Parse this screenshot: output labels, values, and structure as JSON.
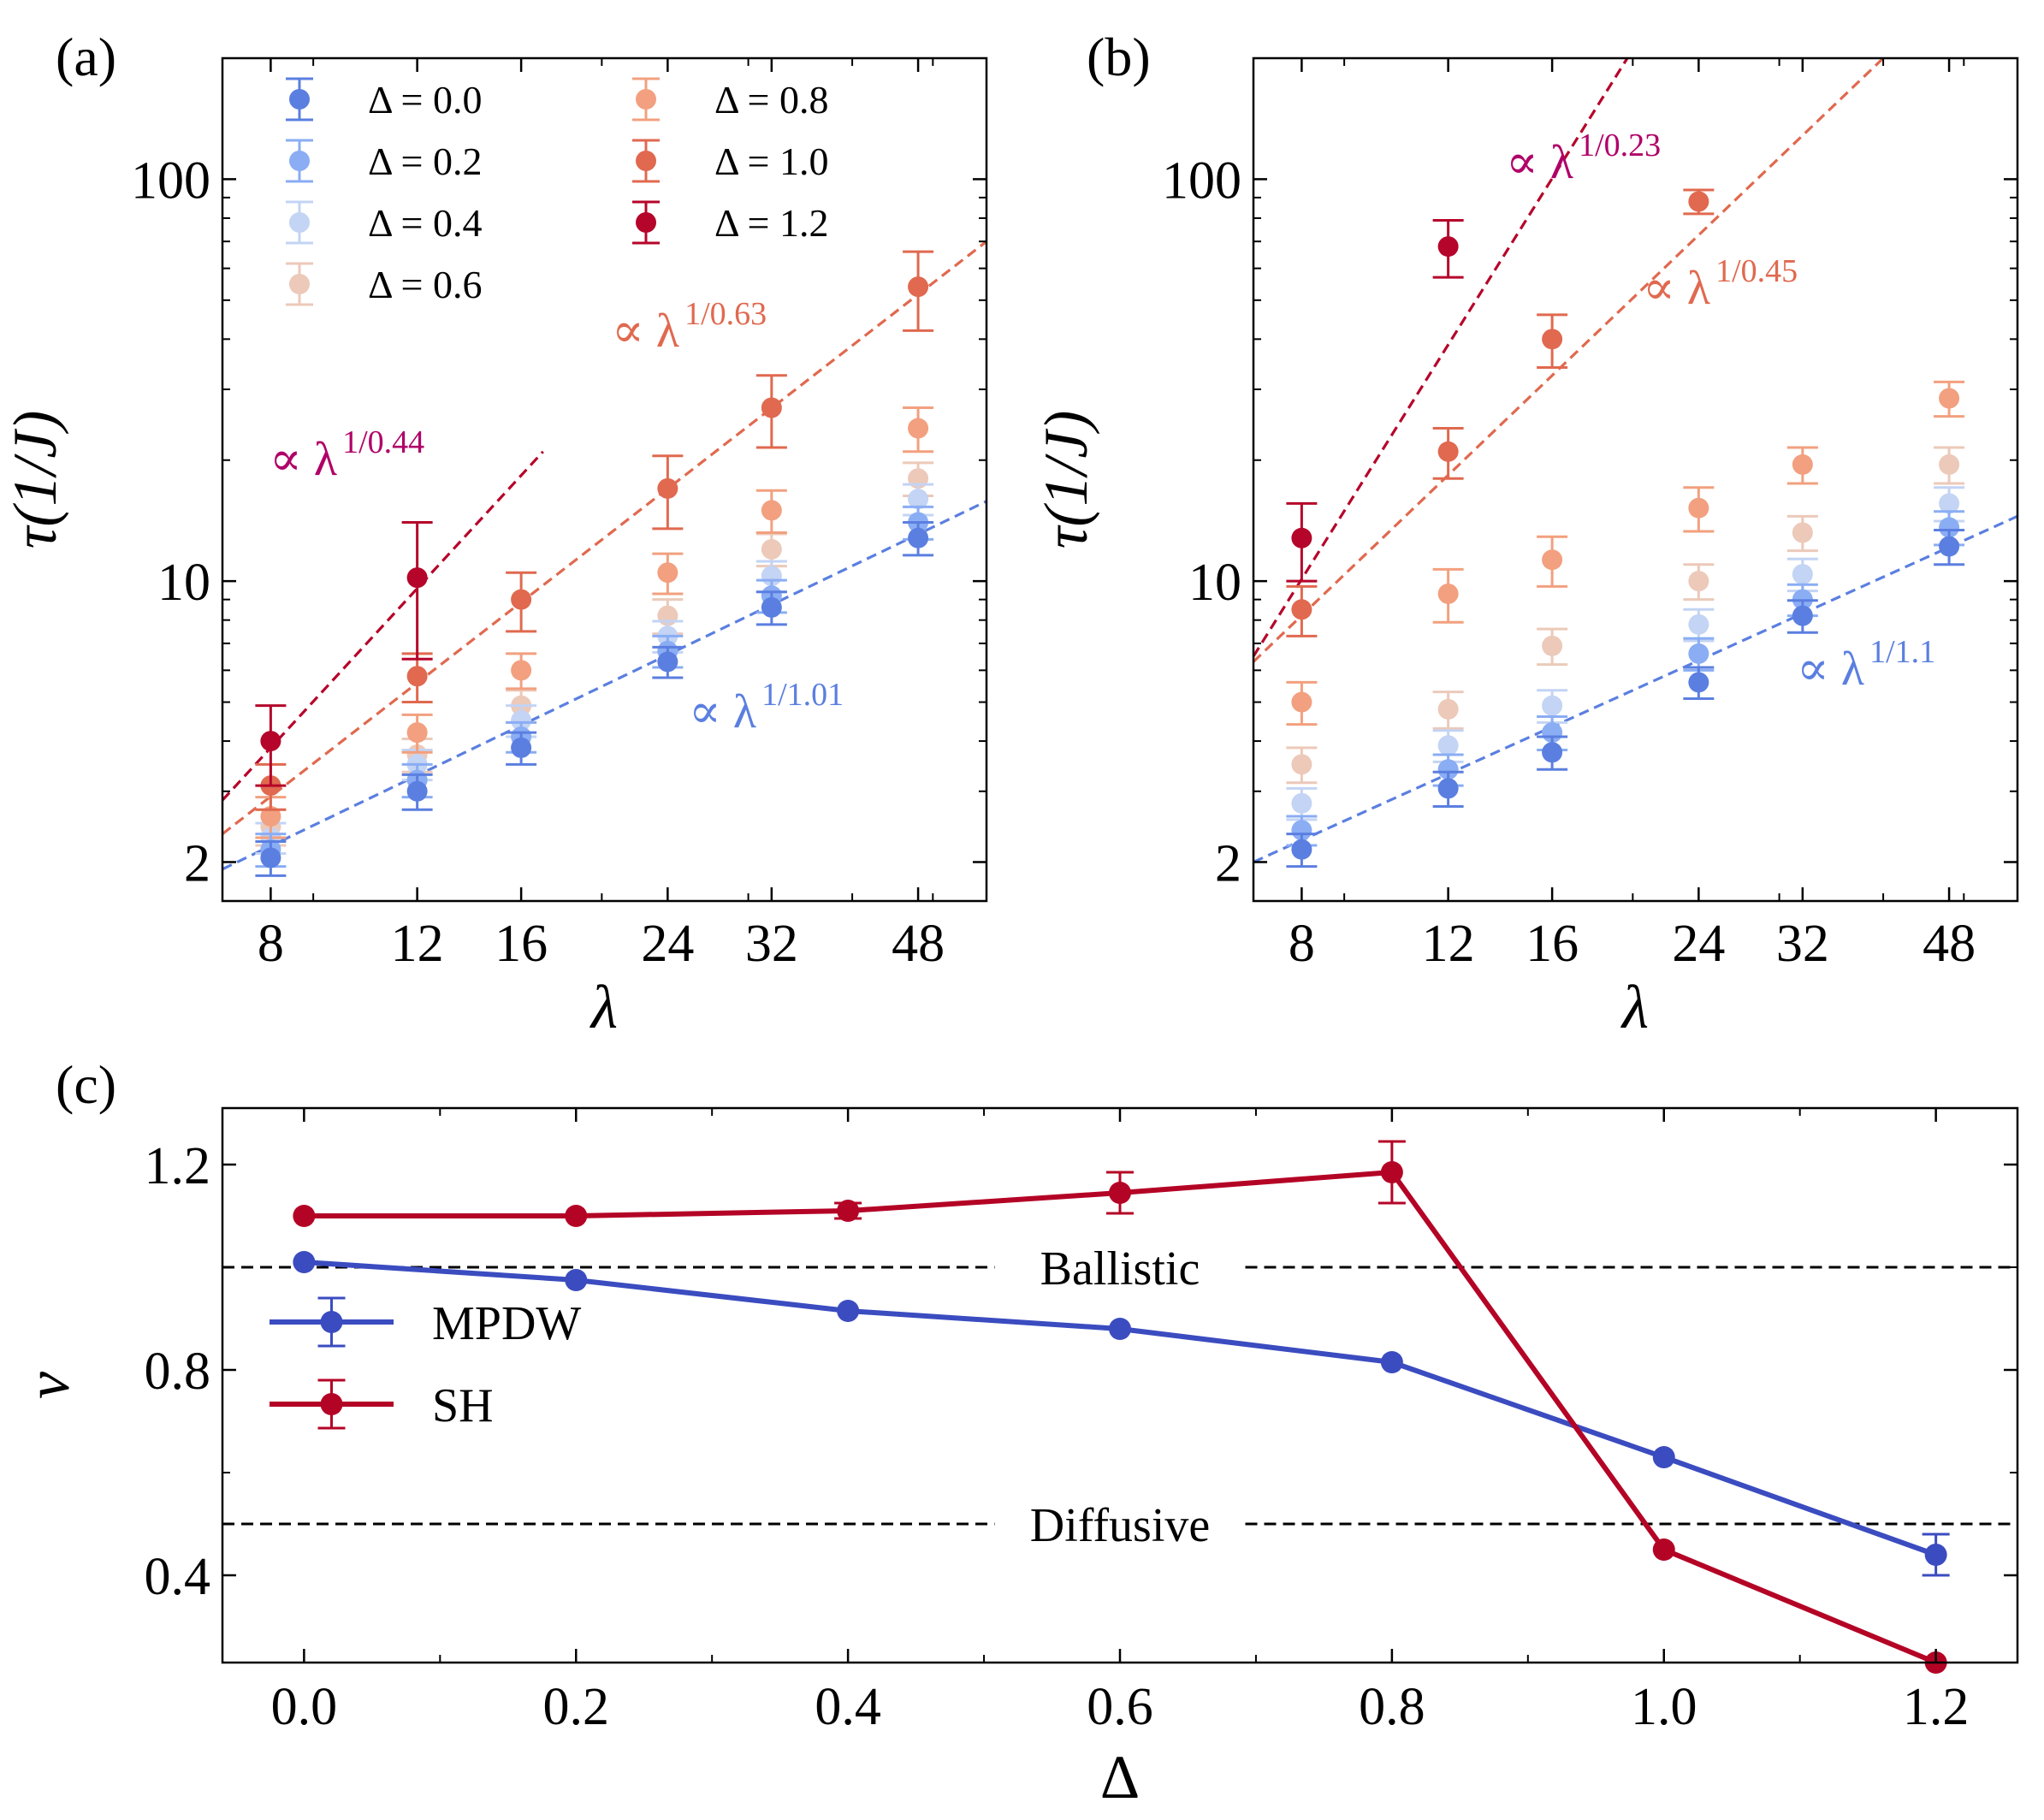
{
  "chart_data": [
    {
      "panel": "(a)",
      "type": "scatter",
      "xlabel": "λ",
      "ylabel": "τ(1/J)",
      "xscale": "log",
      "yscale": "log",
      "xlim": [
        7,
        58
      ],
      "ylim": [
        1.6,
        200
      ],
      "xticks": [
        8,
        12,
        16,
        24,
        32,
        48
      ],
      "yticks": [
        2,
        10,
        100
      ],
      "x": [
        8,
        12,
        16,
        24,
        32,
        48
      ],
      "series": [
        {
          "name": "Δ = 0.0",
          "color": "#5b7fe0",
          "values": [
            2.05,
            3.0,
            3.85,
            6.3,
            8.6,
            12.8
          ],
          "errors": [
            0.2,
            0.3,
            0.35,
            0.55,
            0.8,
            1.2
          ]
        },
        {
          "name": "Δ = 0.2",
          "color": "#8aadf4",
          "values": [
            2.15,
            3.2,
            4.1,
            6.7,
            9.2,
            14.0
          ],
          "errors": [
            0.2,
            0.3,
            0.35,
            0.6,
            0.85,
            1.3
          ]
        },
        {
          "name": "Δ = 0.4",
          "color": "#c3d4f4",
          "values": [
            2.3,
            3.5,
            4.5,
            7.3,
            10.3,
            16.0
          ],
          "errors": [
            0.2,
            0.3,
            0.4,
            0.65,
            0.9,
            1.4
          ]
        },
        {
          "name": "Δ = 0.6",
          "color": "#ecc9b9",
          "values": [
            2.45,
            3.7,
            4.9,
            8.2,
            12.0,
            18.0
          ],
          "errors": [
            0.25,
            0.35,
            0.45,
            0.8,
            1.1,
            1.7
          ]
        },
        {
          "name": "Δ = 0.8",
          "color": "#f2a07f",
          "values": [
            2.6,
            4.2,
            6.0,
            10.5,
            15.0,
            24.0
          ],
          "errors": [
            0.3,
            0.45,
            0.6,
            1.2,
            1.8,
            3.0
          ]
        },
        {
          "name": "Δ = 1.0",
          "color": "#e0694f",
          "values": [
            3.1,
            5.8,
            9.0,
            17.0,
            27.0,
            54.0
          ],
          "errors": [
            0.4,
            0.8,
            1.5,
            3.5,
            5.5,
            12.0
          ]
        },
        {
          "name": "Δ = 1.2",
          "color": "#b5052a",
          "values": [
            4.0,
            10.2
          ],
          "x": [
            8,
            12
          ],
          "errors": [
            0.9,
            3.8
          ]
        }
      ],
      "fits": [
        {
          "label": "∝ λ",
          "exponent": "1/1.01",
          "color": "#5b7fe0"
        },
        {
          "label": "∝ λ",
          "exponent": "1/0.63",
          "color": "#e0694f"
        },
        {
          "label": "∝ λ",
          "exponent": "1/0.44",
          "color": "#b00068"
        }
      ]
    },
    {
      "panel": "(b)",
      "type": "scatter",
      "xlabel": "λ",
      "ylabel": "τ(1/J)",
      "xscale": "log",
      "yscale": "log",
      "xlim": [
        7,
        58
      ],
      "ylim": [
        1.6,
        200
      ],
      "xticks": [
        8,
        12,
        16,
        24,
        32,
        48
      ],
      "yticks": [
        2,
        10,
        100
      ],
      "x": [
        8,
        12,
        16,
        24,
        32,
        48
      ],
      "series": [
        {
          "name": "Δ = 0.0",
          "color": "#5b7fe0",
          "values": [
            2.15,
            3.05,
            3.75,
            5.6,
            8.2,
            12.2
          ],
          "errors": [
            0.2,
            0.3,
            0.35,
            0.5,
            0.75,
            1.2
          ]
        },
        {
          "name": "Δ = 0.2",
          "color": "#8aadf4",
          "values": [
            2.4,
            3.4,
            4.2,
            6.6,
            9.0,
            13.6
          ],
          "errors": [
            0.2,
            0.3,
            0.4,
            0.6,
            0.8,
            1.3
          ]
        },
        {
          "name": "Δ = 0.4",
          "color": "#c3d4f4",
          "values": [
            2.8,
            3.9,
            4.9,
            7.8,
            10.4,
            15.6
          ],
          "errors": [
            0.25,
            0.35,
            0.45,
            0.7,
            0.95,
            1.5
          ]
        },
        {
          "name": "Δ = 0.6",
          "color": "#ecc9b9",
          "values": [
            3.5,
            4.8,
            6.9,
            10.0,
            13.2,
            19.5
          ],
          "errors": [
            0.35,
            0.5,
            0.7,
            1.0,
            1.3,
            2.0
          ]
        },
        {
          "name": "Δ = 0.8",
          "color": "#f2a07f",
          "values": [
            5.0,
            9.3,
            11.3,
            15.2,
            19.5,
            28.5
          ],
          "errors": [
            0.6,
            1.4,
            1.6,
            1.9,
            2.0,
            2.8
          ]
        },
        {
          "name": "Δ = 1.0",
          "color": "#e0694f",
          "values": [
            8.5,
            21.0,
            40.0,
            88.0
          ],
          "x": [
            8,
            12,
            16,
            24
          ],
          "errors": [
            1.2,
            3.0,
            6.0,
            6.0
          ]
        },
        {
          "name": "Δ = 1.2",
          "color": "#b5052a",
          "values": [
            12.8,
            68.0
          ],
          "x": [
            8,
            12
          ],
          "errors": [
            2.8,
            11.0
          ]
        }
      ],
      "fits": [
        {
          "label": "∝ λ",
          "exponent": "1/1.1",
          "color": "#5b7fe0"
        },
        {
          "label": "∝ λ",
          "exponent": "1/0.45",
          "color": "#e0694f"
        },
        {
          "label": "∝ λ",
          "exponent": "1/0.23",
          "color": "#b00068"
        }
      ]
    },
    {
      "panel": "(c)",
      "type": "line",
      "xlabel": "Δ",
      "ylabel": "ν",
      "xlim": [
        -0.06,
        1.26
      ],
      "ylim": [
        0.23,
        1.31
      ],
      "xticks": [
        "0.0",
        "0.2",
        "0.4",
        "0.6",
        "0.8",
        "1.0",
        "1.2"
      ],
      "yticks": [
        "0.4",
        "0.8",
        "1.2"
      ],
      "x": [
        0.0,
        0.2,
        0.4,
        0.6,
        0.8,
        1.0,
        1.2
      ],
      "series": [
        {
          "name": "MPDW",
          "color": "#3b4cc0",
          "values": [
            1.01,
            0.975,
            0.915,
            0.88,
            0.815,
            0.63,
            0.44
          ],
          "errors": [
            0.008,
            0.008,
            0.01,
            0.01,
            0.01,
            0.012,
            0.04
          ]
        },
        {
          "name": "SH",
          "color": "#b40426",
          "values": [
            1.1,
            1.1,
            1.11,
            1.145,
            1.185,
            0.45,
            0.23
          ],
          "errors": [
            0.01,
            0.01,
            0.015,
            0.04,
            0.06,
            0.01,
            0.01
          ]
        }
      ],
      "reference_lines": [
        {
          "label": "Ballistic",
          "y": 1.0
        },
        {
          "label": "Diffusive",
          "y": 0.5
        }
      ]
    }
  ]
}
